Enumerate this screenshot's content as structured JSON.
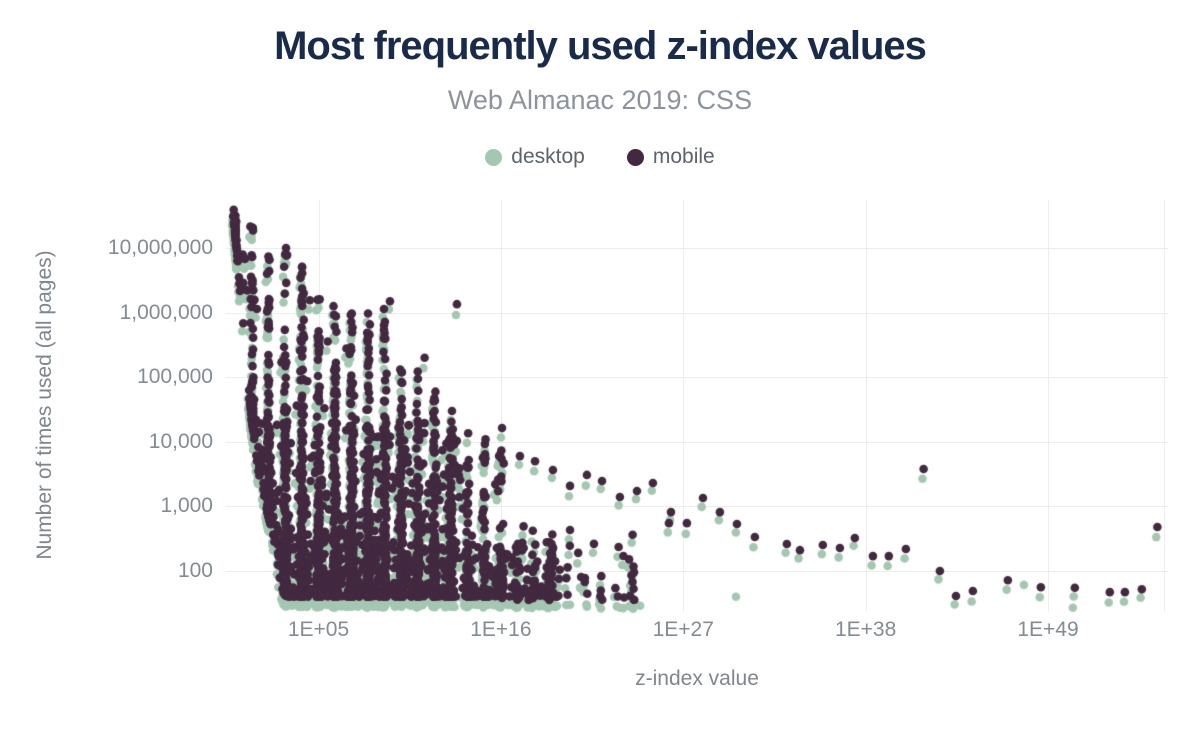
{
  "header": {
    "title": "Most frequently used z-index values",
    "subtitle": "Web Almanac 2019: CSS"
  },
  "legend": [
    {
      "label": "desktop",
      "color": "#a5c7b2"
    },
    {
      "label": "mobile",
      "color": "#422940"
    }
  ],
  "chart_data": {
    "type": "scatter",
    "title": "Most frequently used z-index values",
    "subtitle": "Web Almanac 2019: CSS",
    "xlabel": "z-index value",
    "ylabel": "Number of times used (all pages)",
    "x_scale": "log",
    "y_scale": "log",
    "grid": true,
    "legend_position": "top",
    "background": "#ffffff",
    "gridline_color": "#ededed",
    "series": [
      {
        "name": "desktop",
        "color": "#a5c7b2"
      },
      {
        "name": "mobile",
        "color": "#422940"
      }
    ],
    "x_ticks": [
      {
        "label": "1E+05",
        "exp": 5
      },
      {
        "label": "1E+16",
        "exp": 16
      },
      {
        "label": "1E+27",
        "exp": 27
      },
      {
        "label": "1E+38",
        "exp": 38
      },
      {
        "label": "1E+49",
        "exp": 49
      }
    ],
    "edge_gridline_exp": 56,
    "y_ticks": [
      {
        "label": "10,000,000",
        "value": 10000000
      },
      {
        "label": "1,000,000",
        "value": 1000000
      },
      {
        "label": "100,000",
        "value": 100000
      },
      {
        "label": "10,000",
        "value": 10000
      },
      {
        "label": "1,000",
        "value": 1000
      },
      {
        "label": "100",
        "value": 100
      }
    ],
    "x_range_exp": [
      -0.58,
      56.24
    ],
    "y_range_log": [
      1.365,
      7.743
    ],
    "point_radius": 4.3,
    "tail_points_mobile": [
      [
        9.31,
        1500000
      ],
      [
        11.4,
        200000
      ],
      [
        12.0,
        30000
      ],
      [
        13.05,
        30000
      ],
      [
        13.35,
        1350000
      ],
      [
        16.07,
        16300
      ],
      [
        17.15,
        6000
      ],
      [
        18.06,
        5000
      ],
      [
        19.14,
        3650
      ],
      [
        20.17,
        2080
      ],
      [
        20.17,
        430
      ],
      [
        21.07,
        78
      ],
      [
        21.19,
        3070
      ],
      [
        22.1,
        2470
      ],
      [
        23.18,
        1400
      ],
      [
        24.21,
        1730
      ],
      [
        25.17,
        2300
      ],
      [
        26.14,
        550
      ],
      [
        26.26,
        815
      ],
      [
        27.22,
        550
      ],
      [
        28.19,
        1350
      ],
      [
        29.21,
        815
      ],
      [
        30.24,
        535
      ],
      [
        31.32,
        335
      ],
      [
        33.25,
        262
      ],
      [
        34.04,
        210
      ],
      [
        35.42,
        252
      ],
      [
        36.45,
        227
      ],
      [
        37.35,
        324
      ],
      [
        38.44,
        170
      ],
      [
        39.4,
        170
      ],
      [
        40.43,
        219
      ],
      [
        41.5,
        3800
      ],
      [
        42.48,
        100
      ],
      [
        43.45,
        41
      ],
      [
        44.47,
        49
      ],
      [
        46.58,
        72
      ],
      [
        48.57,
        56
      ],
      [
        50.62,
        55
      ],
      [
        52.73,
        47
      ],
      [
        53.64,
        47
      ],
      [
        54.66,
        52
      ],
      [
        55.6,
        480
      ]
    ],
    "desktop_only_points": [
      [
        19.14,
        32
      ],
      [
        20.17,
        30
      ],
      [
        21.19,
        28
      ],
      [
        23.18,
        27
      ],
      [
        24.4,
        29
      ],
      [
        30.18,
        40
      ],
      [
        47.55,
        61
      ],
      [
        50.5,
        27
      ]
    ],
    "desktop_partner": {
      "exp_offset": -0.07,
      "count_factor": 0.72
    },
    "dense_cloud": {
      "seed": 11,
      "min_log": 1.6,
      "col_jitter": 0.13,
      "col_bias": 2.6,
      "stripe_prob": 0.55,
      "stripe_jitter": 0.18,
      "low_log_curve": [
        [
          -0.45,
          7.75
        ],
        [
          -0.2,
          7.6
        ],
        [
          0.05,
          7.0
        ],
        [
          0.4,
          5.9
        ],
        [
          0.7,
          4.96
        ],
        [
          1.05,
          4.18
        ],
        [
          1.35,
          3.56
        ],
        [
          1.9,
          2.94
        ],
        [
          2.45,
          2.32
        ],
        [
          2.75,
          1.7
        ],
        [
          3.1,
          1.6
        ],
        [
          60,
          1.6
        ]
      ],
      "columns": [
        {
          "exp": 0,
          "n": 25,
          "max_log": 7.7
        },
        {
          "exp": 1,
          "n": 60,
          "max_log": 7.35
        },
        {
          "exp": 2,
          "n": 90,
          "max_log": 7.2
        },
        {
          "exp": 3,
          "n": 120,
          "max_log": 7.2
        },
        {
          "exp": 4,
          "n": 120,
          "max_log": 6.9
        },
        {
          "exp": 5,
          "n": 110,
          "max_log": 6.4
        },
        {
          "exp": 6,
          "n": 100,
          "max_log": 6.2
        },
        {
          "exp": 7,
          "n": 95,
          "max_log": 6.0
        },
        {
          "exp": 8,
          "n": 90,
          "max_log": 6.0
        },
        {
          "exp": 9,
          "n": 85,
          "max_log": 6.1
        },
        {
          "exp": 10,
          "n": 60,
          "max_log": 5.2
        },
        {
          "exp": 11,
          "n": 55,
          "max_log": 5.1
        },
        {
          "exp": 12,
          "n": 45,
          "max_log": 4.8
        },
        {
          "exp": 13,
          "n": 35,
          "max_log": 4.4
        },
        {
          "exp": 14,
          "n": 30,
          "max_log": 4.15
        },
        {
          "exp": 15,
          "n": 25,
          "max_log": 4.2
        },
        {
          "exp": 16,
          "n": 20,
          "max_log": 4.25
        }
      ],
      "between": {
        "n": 330,
        "exp_min": 0,
        "exp_max": 16.5,
        "env_factor": 0.93,
        "bias": 2.4
      },
      "band": {
        "n": 750,
        "exp_min": 0.8,
        "exp_max": 13.6,
        "log_hi": 4.3,
        "bias": 1.5
      },
      "carpet": {
        "n": 520,
        "exp_min": 2.7,
        "exp_max": 19.6,
        "log_span": 0.85,
        "bias": 1.7,
        "left_bias": 1.15
      },
      "mid": {
        "n": 55,
        "exp_min": 16.2,
        "exp_max": 24.5,
        "log_min": 1.55,
        "log_span": 1.15,
        "bias": 1.7
      }
    }
  }
}
